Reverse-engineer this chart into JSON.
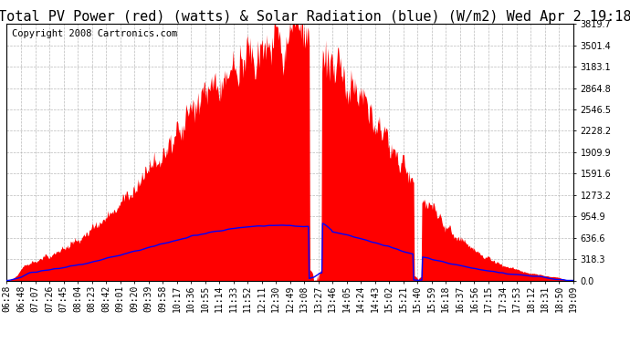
{
  "title": "Total PV Power (red) (watts) & Solar Radiation (blue) (W/m2) Wed Apr 2 19:18",
  "copyright": "Copyright 2008 Cartronics.com",
  "background_color": "#ffffff",
  "plot_bg_color": "#ffffff",
  "grid_color": "#aaaaaa",
  "y_ticks": [
    0.0,
    318.3,
    636.6,
    954.9,
    1273.2,
    1591.6,
    1909.9,
    2228.2,
    2546.5,
    2864.8,
    3183.1,
    3501.4,
    3819.7
  ],
  "y_max": 3819.7,
  "x_tick_labels": [
    "06:28",
    "06:48",
    "07:07",
    "07:26",
    "07:45",
    "08:04",
    "08:23",
    "08:42",
    "09:01",
    "09:20",
    "09:39",
    "09:58",
    "10:17",
    "10:36",
    "10:55",
    "11:14",
    "11:33",
    "11:52",
    "12:11",
    "12:30",
    "12:49",
    "13:08",
    "13:27",
    "13:46",
    "14:05",
    "14:24",
    "14:43",
    "15:02",
    "15:21",
    "15:40",
    "15:59",
    "16:18",
    "16:37",
    "16:56",
    "17:15",
    "17:34",
    "17:53",
    "18:12",
    "18:31",
    "18:50",
    "19:09"
  ],
  "fill_color": "#ff0000",
  "line_color": "#0000ff",
  "title_fontsize": 11,
  "tick_fontsize": 7,
  "copyright_fontsize": 7.5
}
